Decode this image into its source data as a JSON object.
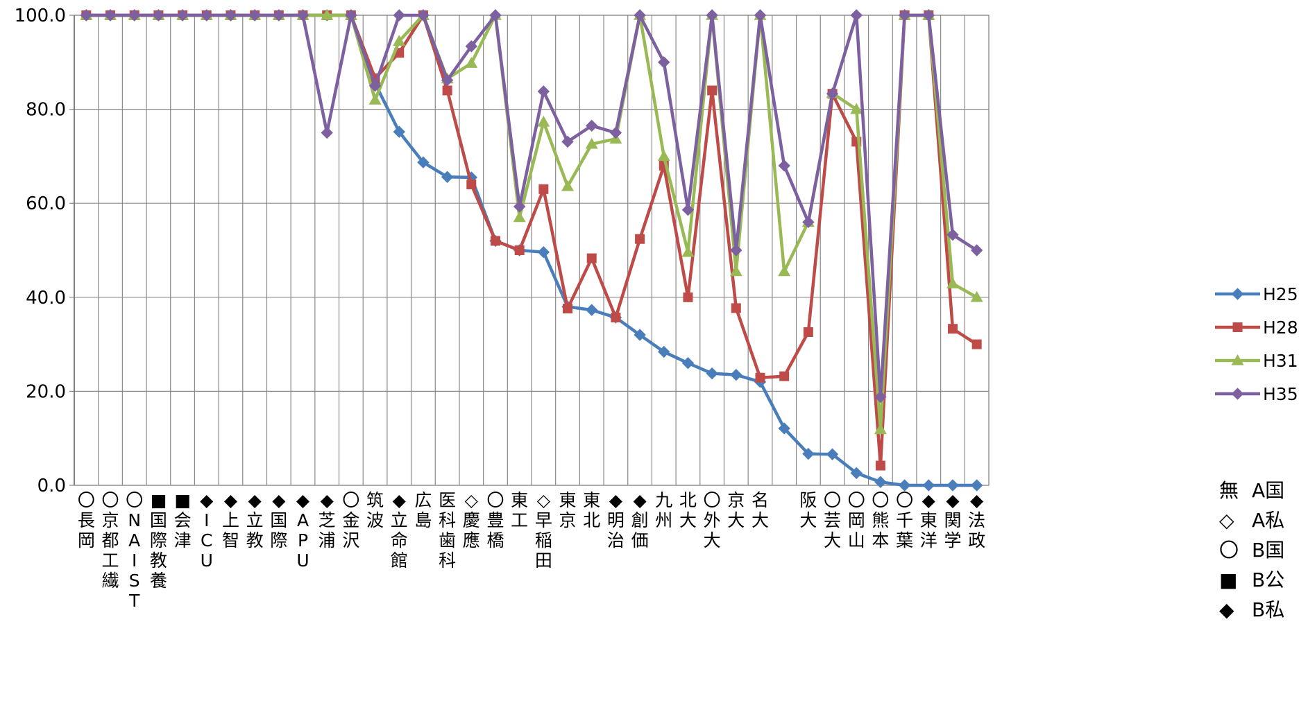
{
  "chart_data": {
    "type": "line",
    "ylim": [
      0,
      100
    ],
    "yticks": [
      "100.0",
      "80.0",
      "60.0",
      "40.0",
      "20.0",
      "0.0"
    ],
    "grid": true,
    "legend_position": "right",
    "categories": [
      "〇長岡",
      "〇京都工繊",
      "〇NAIST",
      "■国際教養",
      "■会津",
      "◆ICU",
      "◆上智",
      "◆立教",
      "◆国際",
      "◆APU",
      "◆芝浦",
      "〇金沢",
      "筑波",
      "◆立命館",
      "広島",
      "医科歯科",
      "◇慶應",
      "〇豊橋",
      "東工",
      "◇早稲田",
      "東京",
      "東北",
      "◆明治",
      "◆創価",
      "九州",
      "北大",
      "〇外大",
      "京大",
      "名大",
      "",
      "阪大",
      "〇芸大",
      "〇岡山",
      "〇熊本",
      "〇千葉",
      "◆東洋",
      "◆関学",
      "◆法政"
    ],
    "series": [
      {
        "name": "H25",
        "color": "#4a7ebb",
        "marker": "diamond",
        "values": [
          100,
          100,
          100,
          100,
          100,
          100,
          100,
          100,
          100,
          100,
          100,
          100,
          85.5,
          75.2,
          68.7,
          65.6,
          65.5,
          52,
          50,
          49.6,
          38,
          37.3,
          35.7,
          32,
          28.4,
          26,
          23.8,
          23.5,
          22,
          12.1,
          6.7,
          6.6,
          2.6,
          0.7,
          0,
          0,
          0,
          0
        ]
      },
      {
        "name": "H28",
        "color": "#be4b48",
        "marker": "square",
        "values": [
          100,
          100,
          100,
          100,
          100,
          100,
          100,
          100,
          100,
          100,
          100,
          100,
          86.6,
          92,
          100,
          84,
          64,
          52,
          50,
          63,
          37.6,
          48.3,
          35.7,
          52.4,
          68,
          40,
          84,
          37.7,
          22.9,
          23.2,
          32.6,
          83.3,
          73.1,
          4.2,
          100,
          100,
          33.3,
          30
        ]
      },
      {
        "name": "H31",
        "color": "#98b954",
        "marker": "triangle",
        "values": [
          100,
          100,
          100,
          100,
          100,
          100,
          100,
          100,
          100,
          100,
          100,
          100,
          82,
          94.5,
          100,
          86.5,
          89.8,
          100,
          57,
          77.3,
          63.6,
          72.6,
          73.7,
          100,
          70,
          49.6,
          100,
          45.5,
          100,
          45.5,
          56,
          83.4,
          80,
          11.9,
          100,
          100,
          42.9,
          40
        ]
      },
      {
        "name": "H35",
        "color": "#7d60a0",
        "marker": "diamond",
        "values": [
          100,
          100,
          100,
          100,
          100,
          100,
          100,
          100,
          100,
          100,
          75,
          100,
          85,
          100,
          100,
          86.2,
          93.4,
          100,
          59.3,
          83.8,
          73.1,
          76.5,
          75,
          100,
          90,
          58.6,
          100,
          50,
          100,
          68,
          56,
          83.3,
          100,
          18.8,
          100,
          100,
          53.3,
          50
        ]
      }
    ]
  },
  "notes": [
    {
      "symbol": "無",
      "label": "A国"
    },
    {
      "symbol": "◇",
      "label": "A私"
    },
    {
      "symbol": "〇",
      "label": "B国"
    },
    {
      "symbol": "■",
      "label": "B公"
    },
    {
      "symbol": "◆",
      "label": "B私"
    }
  ]
}
